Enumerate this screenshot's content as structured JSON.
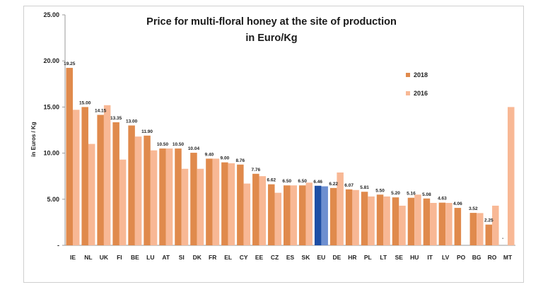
{
  "chart_data": {
    "type": "bar",
    "title_line1": "Price for multi-floral honey at the site of production",
    "title_line2": "in Euro/Kg",
    "ylabel": "in Euros / Kg",
    "xlabel": "",
    "ylim": [
      0,
      25
    ],
    "yticks": [
      "-",
      "5.00",
      "10.00",
      "15.00",
      "20.00",
      "25.00"
    ],
    "grid": false,
    "legend_position": "right",
    "colors": {
      "2018": "#e08a4c",
      "2016": "#f8b895",
      "eu_2018": "#1e4fa5"
    },
    "categories": [
      "IE",
      "NL",
      "UK",
      "FI",
      "BE",
      "LU",
      "AT",
      "SI",
      "DK",
      "FR",
      "EL",
      "CY",
      "EE",
      "CZ",
      "ES",
      "SK",
      "EU",
      "DE",
      "HR",
      "PL",
      "LT",
      "SE",
      "HU",
      "IT",
      "LV",
      "PO",
      "BG",
      "RO",
      "MT"
    ],
    "series": [
      {
        "name": "2018",
        "values": [
          19.25,
          15.0,
          14.15,
          13.35,
          13.0,
          11.9,
          10.5,
          10.5,
          10.04,
          9.4,
          9.0,
          8.76,
          7.76,
          6.62,
          6.5,
          6.5,
          6.46,
          6.22,
          6.07,
          5.81,
          5.5,
          5.2,
          5.16,
          5.08,
          4.63,
          4.06,
          3.52,
          2.25,
          null
        ],
        "labels": [
          "19.25",
          "15.00",
          "14.15",
          "13.35",
          "13.00",
          "11.90",
          "10.50",
          "10.50",
          "10.04",
          "9.40",
          "9.00",
          "8.76",
          "7.76",
          "6.62",
          "6.50",
          "6.50",
          "6.46",
          "6.22",
          "6.07",
          "5.81",
          "5.50",
          "5.20",
          "5.16",
          "5.08",
          "4.63",
          "4.06",
          "3.52",
          "2.25",
          "-"
        ]
      },
      {
        "name": "2016",
        "values": [
          14.7,
          11.0,
          15.2,
          9.3,
          11.8,
          10.3,
          10.5,
          8.3,
          8.3,
          9.4,
          8.9,
          6.7,
          7.5,
          5.7,
          6.5,
          6.8,
          6.4,
          7.9,
          6.0,
          5.3,
          5.3,
          4.3,
          5.5,
          4.6,
          4.6,
          null,
          3.5,
          4.3,
          15.0
        ]
      }
    ]
  }
}
